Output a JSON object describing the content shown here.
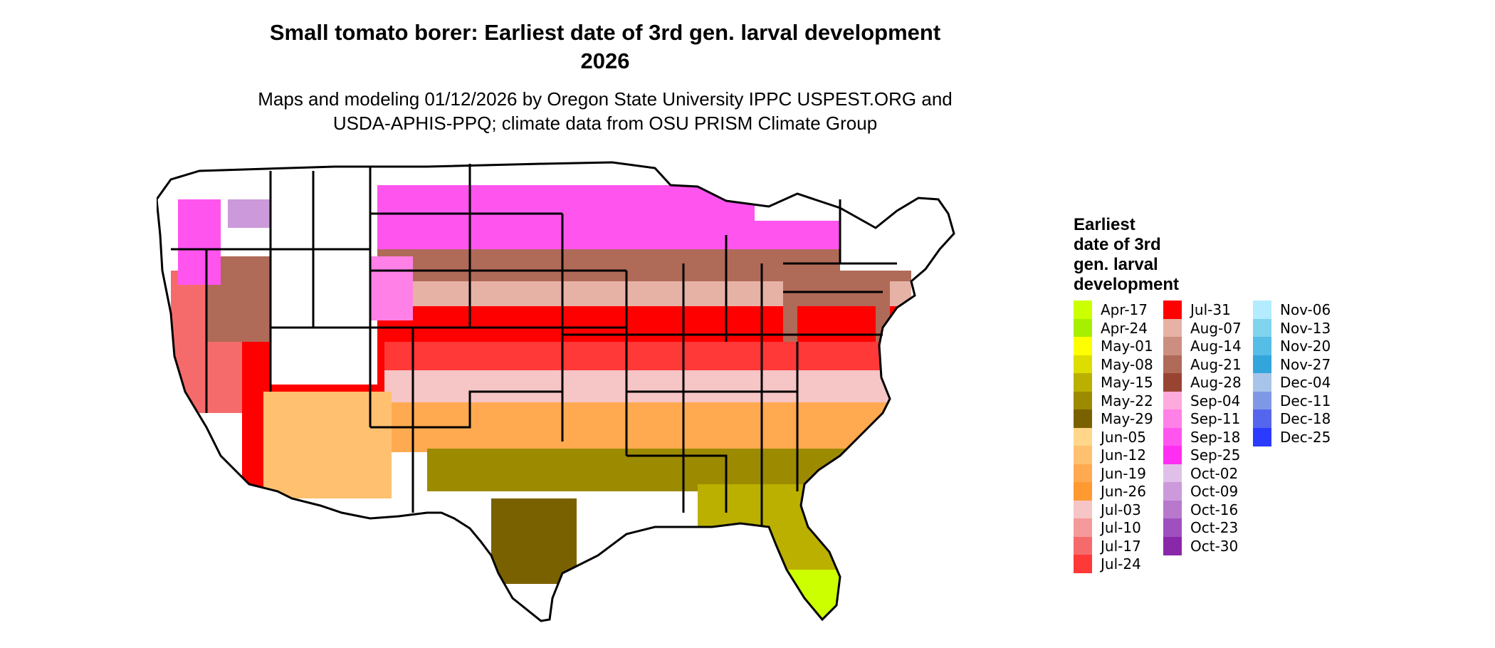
{
  "title_line1": "Small tomato borer: Earliest date of 3rd gen. larval development",
  "title_line2": "2026",
  "subtitle_line1": "Maps and modeling 01/12/2026 by Oregon State University IPPC USPEST.ORG and",
  "subtitle_line2": "USDA-APHIS-PPQ; climate data from OSU PRISM Climate Group",
  "legend": {
    "title_lines": [
      "Earliest",
      "date of 3rd",
      "gen. larval",
      "development"
    ],
    "items": [
      {
        "label": "Apr-17",
        "color": "#ccff00"
      },
      {
        "label": "Apr-24",
        "color": "#a6ef00"
      },
      {
        "label": "May-01",
        "color": "#ffff00"
      },
      {
        "label": "May-08",
        "color": "#dddd00"
      },
      {
        "label": "May-15",
        "color": "#bbb000"
      },
      {
        "label": "May-22",
        "color": "#9c8a00"
      },
      {
        "label": "May-29",
        "color": "#7a6100"
      },
      {
        "label": "Jun-05",
        "color": "#ffd68a"
      },
      {
        "label": "Jun-12",
        "color": "#ffc070"
      },
      {
        "label": "Jun-19",
        "color": "#ffaa50"
      },
      {
        "label": "Jun-26",
        "color": "#ff9a33"
      },
      {
        "label": "Jul-03",
        "color": "#f6c5c5"
      },
      {
        "label": "Jul-10",
        "color": "#f59a9a"
      },
      {
        "label": "Jul-17",
        "color": "#f56b6b"
      },
      {
        "label": "Jul-24",
        "color": "#ff3838"
      },
      {
        "label": "Jul-31",
        "color": "#ff0000"
      },
      {
        "label": "Aug-07",
        "color": "#e6b2a6"
      },
      {
        "label": "Aug-14",
        "color": "#cc8e80"
      },
      {
        "label": "Aug-21",
        "color": "#b06a58"
      },
      {
        "label": "Aug-28",
        "color": "#994433"
      },
      {
        "label": "Sep-04",
        "color": "#ffaadd"
      },
      {
        "label": "Sep-11",
        "color": "#ff80e6"
      },
      {
        "label": "Sep-18",
        "color": "#ff55ee"
      },
      {
        "label": "Sep-25",
        "color": "#ff2ef2"
      },
      {
        "label": "Oct-02",
        "color": "#e0c0e8"
      },
      {
        "label": "Oct-09",
        "color": "#cc9ada"
      },
      {
        "label": "Oct-16",
        "color": "#b878cc"
      },
      {
        "label": "Oct-23",
        "color": "#a050be"
      },
      {
        "label": "Oct-30",
        "color": "#8a28aa"
      },
      {
        "label": "Nov-06",
        "color": "#b3ecff"
      },
      {
        "label": "Nov-13",
        "color": "#80d4ee"
      },
      {
        "label": "Nov-20",
        "color": "#55bde6"
      },
      {
        "label": "Nov-27",
        "color": "#33a5dd"
      },
      {
        "label": "Dec-04",
        "color": "#a8c4e8"
      },
      {
        "label": "Dec-11",
        "color": "#7f98e6"
      },
      {
        "label": "Dec-18",
        "color": "#5566ee"
      },
      {
        "label": "Dec-25",
        "color": "#2a3bff"
      }
    ]
  },
  "map": {
    "background_color": "#ffffff",
    "border_color": "#000000",
    "band_colors": {
      "south_florida": "#ccff00",
      "gulf_coast": "#9c8a00",
      "southern_plains": "#ffaa50",
      "south_central": "#f6c5c5",
      "red_belt": "#ff0000",
      "midwest_low": "#e6b2a6",
      "midwest_high": "#b06a58",
      "northern": "#ff55ee",
      "mountain": "#cc9ada"
    }
  }
}
